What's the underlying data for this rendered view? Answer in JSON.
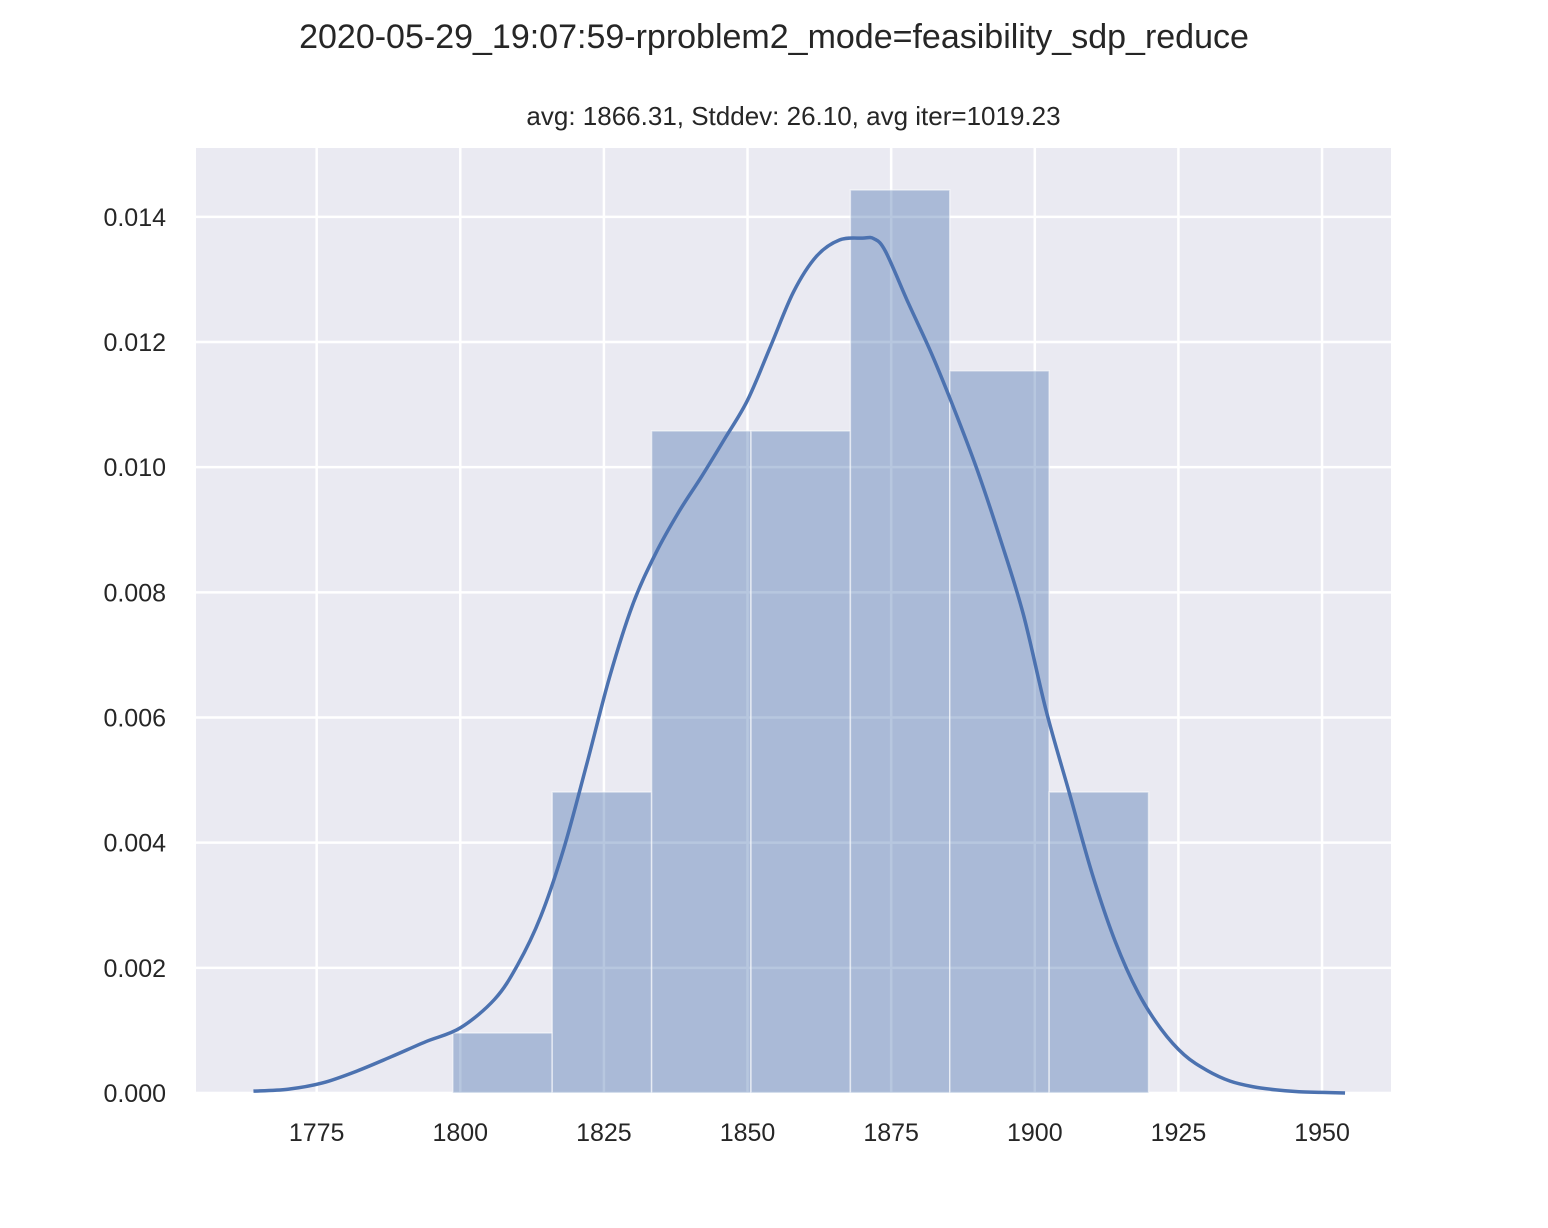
{
  "chart_data": {
    "type": "bar",
    "title": "2020-05-29_19:07:59-rproblem2_mode=feasibility_sdp_reduce",
    "subtitle": "avg: 1866.31, Stddev: 26.10, avg iter=1019.23",
    "xlabel": "",
    "ylabel": "",
    "xlim": [
      1754,
      1962
    ],
    "ylim": [
      0,
      0.0151
    ],
    "x_ticks": [
      1775,
      1800,
      1825,
      1850,
      1875,
      1900,
      1925,
      1950
    ],
    "x_tick_labels": [
      "1775",
      "1800",
      "1825",
      "1850",
      "1875",
      "1900",
      "1925",
      "1950"
    ],
    "y_ticks": [
      0,
      0.002,
      0.004,
      0.006,
      0.008,
      0.01,
      0.012,
      0.014
    ],
    "y_tick_labels": [
      "0.000",
      "0.002",
      "0.004",
      "0.006",
      "0.008",
      "0.010",
      "0.012",
      "0.014"
    ],
    "grid": true,
    "histogram": {
      "bin_edges": [
        1798.7,
        1816.0,
        1833.3,
        1850.6,
        1867.9,
        1885.2,
        1902.5,
        1919.8
      ],
      "densities": [
        0.00096,
        0.00481,
        0.01058,
        0.01058,
        0.01443,
        0.01154,
        0.00481
      ]
    },
    "kde": {
      "x": [
        1764,
        1770,
        1776,
        1782,
        1788,
        1794,
        1800,
        1806,
        1810,
        1814,
        1818,
        1822,
        1826,
        1830,
        1834,
        1838,
        1842,
        1846,
        1850,
        1854,
        1858,
        1862,
        1866,
        1870,
        1872,
        1874,
        1878,
        1882,
        1886,
        1890,
        1894,
        1898,
        1902,
        1906,
        1910,
        1914,
        1918,
        1922,
        1926,
        1930,
        1934,
        1938,
        1942,
        1946,
        1950,
        1954
      ],
      "y": [
        3e-05,
        6e-05,
        0.00016,
        0.00035,
        0.00058,
        0.00082,
        0.00104,
        0.0015,
        0.00205,
        0.00282,
        0.0039,
        0.00525,
        0.00665,
        0.0078,
        0.00862,
        0.00928,
        0.00985,
        0.01045,
        0.01107,
        0.01193,
        0.0128,
        0.01337,
        0.01363,
        0.01366,
        0.01365,
        0.01345,
        0.01262,
        0.01182,
        0.01092,
        0.00995,
        0.00885,
        0.00765,
        0.0061,
        0.0048,
        0.0035,
        0.00242,
        0.0016,
        0.00102,
        0.00061,
        0.00036,
        0.00019,
        0.0001,
        5e-05,
        2e-05,
        1e-05,
        0.0
      ]
    },
    "colors": {
      "background": "#eaeaf2",
      "grid": "#ffffff",
      "bar_fill": "#4c72b0",
      "bar_opacity": 0.4,
      "kde_line": "#4c72b0"
    }
  }
}
